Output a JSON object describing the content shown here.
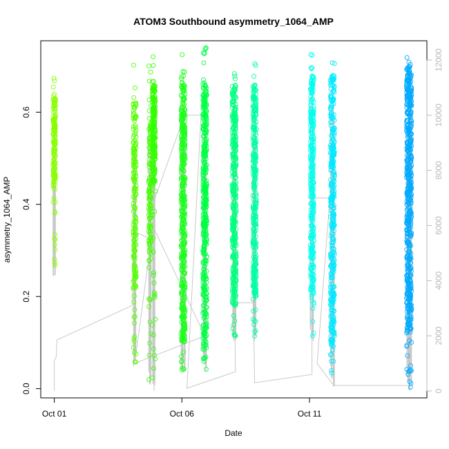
{
  "chart_data": {
    "type": "scatter",
    "title": "ATOM3 Southbound asymmetry_1064_AMP",
    "xlabel": "Date",
    "ylabel": "asymmetry_1064_AMP",
    "x_ticks": [
      "Oct 01",
      "Oct 06",
      "Oct 11"
    ],
    "x_tick_days": [
      1,
      6,
      11
    ],
    "xlim_days": [
      0.47,
      15.6
    ],
    "ylim": [
      -0.02,
      0.755
    ],
    "y_ticks": [
      0.0,
      0.2,
      0.4,
      0.6
    ],
    "y_tick_labels": [
      "0.0",
      "0.2",
      "0.4",
      "0.6"
    ],
    "y2_label": "",
    "y2lim": [
      -250,
      12700
    ],
    "y2_ticks": [
      0,
      2000,
      4000,
      6000,
      8000,
      10000,
      12000
    ],
    "y2_tick_labels": [
      "0",
      "2000",
      "4000",
      "6000",
      "8000",
      "10000",
      "12000"
    ],
    "grid": false,
    "legend": "none",
    "marker": "open-circle",
    "bursts": [
      {
        "day": 1.0,
        "width": 0.1,
        "ymin": 0.26,
        "ymax": 0.68,
        "core": [
          0.44,
          0.63
        ],
        "n": 170,
        "color": "#88ff00"
      },
      {
        "day": 4.15,
        "width": 0.12,
        "ymin": 0.05,
        "ymax": 0.72,
        "core": [
          0.22,
          0.62
        ],
        "n": 200,
        "color": "#55ff00"
      },
      {
        "day": 4.75,
        "width": 0.1,
        "ymin": 0.01,
        "ymax": 0.71,
        "core": [
          0.3,
          0.6
        ],
        "n": 140,
        "color": "#44ff00"
      },
      {
        "day": 4.9,
        "width": 0.12,
        "ymin": 0.0,
        "ymax": 0.73,
        "core": [
          0.45,
          0.66
        ],
        "n": 230,
        "color": "#33ff00"
      },
      {
        "day": 6.05,
        "width": 0.16,
        "ymin": 0.04,
        "ymax": 0.73,
        "core": [
          0.1,
          0.66
        ],
        "n": 430,
        "color": "#1cff1c"
      },
      {
        "day": 6.9,
        "width": 0.16,
        "ymin": 0.04,
        "ymax": 0.74,
        "core": [
          0.08,
          0.66
        ],
        "n": 430,
        "color": "#00ff44"
      },
      {
        "day": 8.05,
        "width": 0.16,
        "ymin": 0.11,
        "ymax": 0.69,
        "core": [
          0.18,
          0.66
        ],
        "n": 380,
        "color": "#00ff80"
      },
      {
        "day": 8.85,
        "width": 0.14,
        "ymin": 0.11,
        "ymax": 0.71,
        "core": [
          0.2,
          0.66
        ],
        "n": 330,
        "color": "#00ffa4"
      },
      {
        "day": 11.1,
        "width": 0.14,
        "ymin": 0.11,
        "ymax": 0.73,
        "core": [
          0.2,
          0.68
        ],
        "n": 330,
        "color": "#00ffee"
      },
      {
        "day": 11.9,
        "width": 0.16,
        "ymin": 0.01,
        "ymax": 0.72,
        "core": [
          0.1,
          0.68
        ],
        "n": 360,
        "color": "#00e9ff"
      },
      {
        "day": 14.9,
        "width": 0.2,
        "ymin": 0.0,
        "ymax": 0.72,
        "core": [
          0.12,
          0.7
        ],
        "n": 560,
        "color": "#00aaff"
      }
    ],
    "index_line": {
      "color": "#c8c8c8",
      "points": [
        [
          1.0,
          0
        ],
        [
          1.0,
          1100
        ],
        [
          1.08,
          1250
        ],
        [
          1.1,
          1850
        ],
        [
          4.05,
          3100
        ],
        [
          4.1,
          5800
        ],
        [
          4.8,
          5500
        ],
        [
          4.15,
          1000
        ],
        [
          6.9,
          2000
        ],
        [
          4.85,
          6000
        ],
        [
          4.95,
          7000
        ],
        [
          6.1,
          10000
        ],
        [
          6.75,
          10000
        ],
        [
          6.2,
          100
        ],
        [
          8.1,
          700
        ],
        [
          8.05,
          3200
        ],
        [
          8.8,
          3200
        ],
        [
          8.85,
          300
        ],
        [
          11.1,
          600
        ],
        [
          11.1,
          7000
        ],
        [
          11.8,
          7000
        ],
        [
          11.3,
          1000
        ],
        [
          11.95,
          200
        ],
        [
          14.9,
          200
        ]
      ]
    }
  }
}
